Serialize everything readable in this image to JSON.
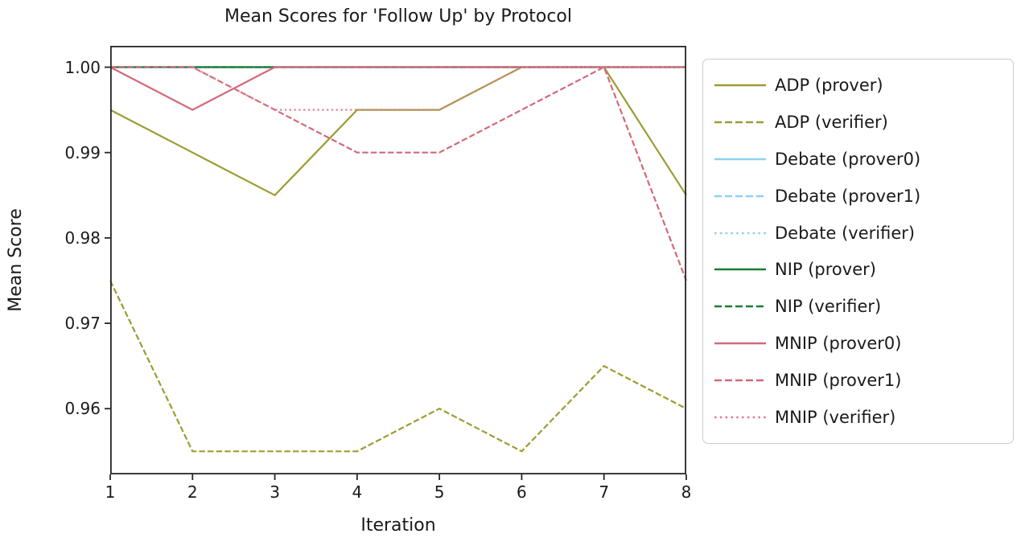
{
  "chart_data": {
    "type": "line",
    "title": "Mean Scores for 'Follow Up' by Protocol",
    "xlabel": "Iteration",
    "ylabel": "Mean Score",
    "x": [
      1,
      2,
      3,
      4,
      5,
      6,
      7,
      8
    ],
    "xlim": [
      1,
      8
    ],
    "ylim": [
      0.9523,
      1.0025
    ],
    "xticks": [
      1,
      2,
      3,
      4,
      5,
      6,
      7,
      8
    ],
    "xtick_labels": [
      "1",
      "2",
      "3",
      "4",
      "5",
      "6",
      "7",
      "8"
    ],
    "yticks": [
      1.0,
      0.99,
      0.98,
      0.97,
      0.96
    ],
    "ytick_labels": [
      "1.00",
      "0.99",
      "0.98",
      "0.97",
      "0.96"
    ],
    "grid": false,
    "legend_position": "outside-right",
    "axis_color": "#262626",
    "series": [
      {
        "name": "ADP (prover)",
        "color": "#9c9c34",
        "style": "solid",
        "values": [
          0.995,
          0.99,
          0.985,
          0.995,
          0.995,
          1.0,
          1.0,
          0.985
        ]
      },
      {
        "name": "ADP (verifier)",
        "color": "#9c9c34",
        "style": "dashed",
        "values": [
          0.975,
          0.955,
          0.955,
          0.955,
          0.96,
          0.955,
          0.965,
          0.96
        ]
      },
      {
        "name": "Debate (prover0)",
        "color": "#8dd1ef",
        "style": "solid",
        "values": [
          1.0,
          1.0,
          1.0,
          1.0,
          1.0,
          1.0,
          1.0,
          1.0
        ]
      },
      {
        "name": "Debate (prover1)",
        "color": "#8dd1ef",
        "style": "dashed",
        "values": [
          1.0,
          1.0,
          1.0,
          1.0,
          1.0,
          1.0,
          1.0,
          1.0
        ]
      },
      {
        "name": "Debate (verifier)",
        "color": "#8dd1ef",
        "style": "dotted",
        "values": [
          1.0,
          1.0,
          1.0,
          1.0,
          1.0,
          1.0,
          1.0,
          1.0
        ]
      },
      {
        "name": "NIP (prover)",
        "color": "#1a7d34",
        "style": "solid",
        "values": [
          1.0,
          1.0,
          1.0,
          1.0,
          1.0,
          1.0,
          1.0,
          1.0
        ]
      },
      {
        "name": "NIP (verifier)",
        "color": "#1a7d34",
        "style": "dashed",
        "values": [
          1.0,
          1.0,
          1.0,
          1.0,
          1.0,
          1.0,
          1.0,
          1.0
        ]
      },
      {
        "name": "MNIP (prover0)",
        "color": "#d2697b",
        "style": "solid",
        "values": [
          1.0,
          0.995,
          1.0,
          1.0,
          1.0,
          1.0,
          1.0,
          1.0
        ]
      },
      {
        "name": "MNIP (prover1)",
        "color": "#d2697b",
        "style": "dashed",
        "values": [
          1.0,
          1.0,
          0.995,
          0.99,
          0.99,
          0.995,
          1.0,
          0.975
        ]
      },
      {
        "name": "MNIP (verifier)",
        "color": "#e27d92",
        "style": "dotted",
        "values": [
          null,
          1.0,
          0.995,
          0.995,
          0.995,
          1.0,
          1.0,
          1.0
        ]
      }
    ]
  }
}
